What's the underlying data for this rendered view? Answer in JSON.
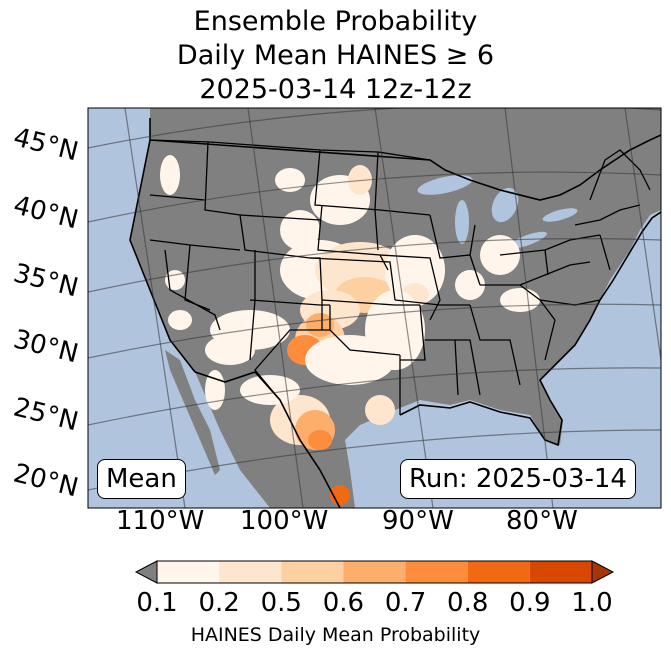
{
  "title": {
    "line1": "Ensemble Probability",
    "line2": "Daily Mean HAINES ≥ 6",
    "line3": "2025-03-14 12z-12z"
  },
  "map": {
    "lat_labels": [
      "45°N",
      "40°N",
      "35°N",
      "30°N",
      "25°N",
      "20°N"
    ],
    "lon_labels": [
      "110°W",
      "100°W",
      "90°W",
      "80°W"
    ],
    "ocean_color": "#b0c4de",
    "land_color": "#808080",
    "mean_label": "Mean",
    "run_label": "Run: 2025-03-14"
  },
  "colorbar": {
    "ticks": [
      "0.1",
      "0.2",
      "0.5",
      "0.6",
      "0.7",
      "0.8",
      "0.9",
      "1.0"
    ],
    "colors": [
      "#fff5eb",
      "#fee6ce",
      "#fdd0a2",
      "#fdae6b",
      "#fd8d3c",
      "#f16913",
      "#d94801",
      "#a63603"
    ],
    "under_color": "#808080",
    "label": "HAINES Daily Mean Probability"
  }
}
